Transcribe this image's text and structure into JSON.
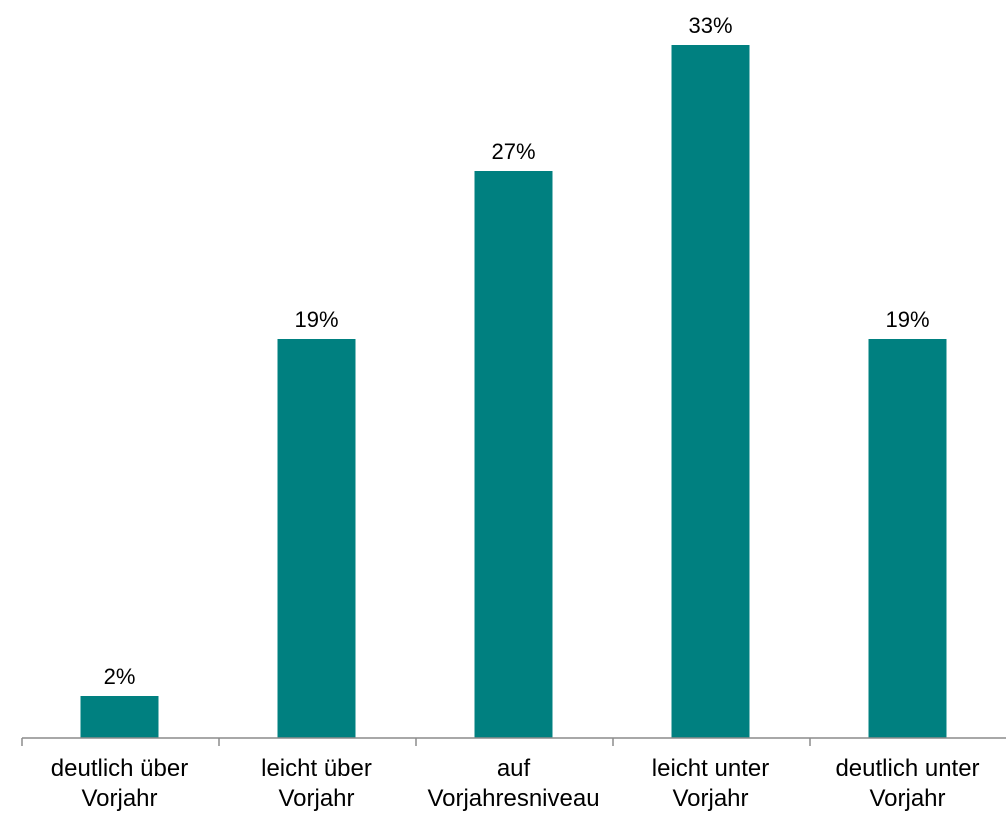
{
  "chart_data": {
    "type": "bar",
    "categories": [
      [
        "deutlich über",
        "Vorjahr"
      ],
      [
        "leicht über",
        "Vorjahr"
      ],
      [
        "auf",
        "Vorjahresniveau"
      ],
      [
        "leicht unter",
        "Vorjahr"
      ],
      [
        "deutlich unter",
        "Vorjahr"
      ]
    ],
    "values": [
      2,
      19,
      27,
      33,
      19
    ],
    "data_labels": [
      "2%",
      "19%",
      "27%",
      "33%",
      "19%"
    ],
    "unit": "%",
    "bar_color": "#008080",
    "axis_color": "#8c8c8c",
    "grid": false,
    "ylim": [
      0,
      33
    ]
  }
}
